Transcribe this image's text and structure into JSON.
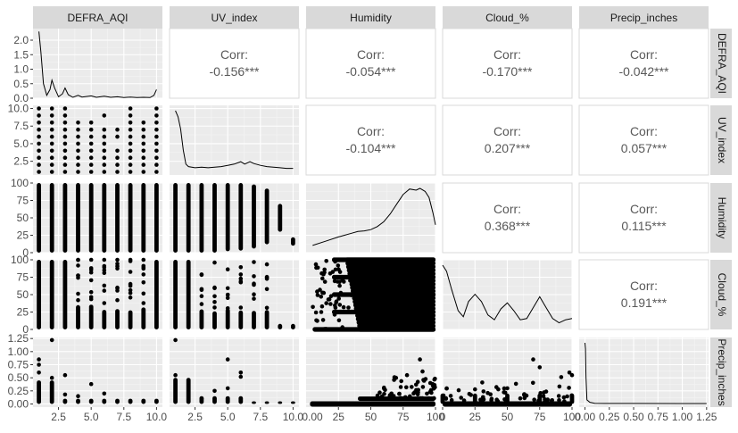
{
  "chart_data": {
    "type": "scatter-matrix",
    "variables": [
      "DEFRA_AQI",
      "UV_index",
      "Humidity",
      "Cloud_%",
      "Precip_inches"
    ],
    "corr_label": "Corr:",
    "correlations": [
      {
        "row": 0,
        "col": 1,
        "value": "-0.156***"
      },
      {
        "row": 0,
        "col": 2,
        "value": "-0.054***"
      },
      {
        "row": 0,
        "col": 3,
        "value": "-0.170***"
      },
      {
        "row": 0,
        "col": 4,
        "value": "-0.042***"
      },
      {
        "row": 1,
        "col": 2,
        "value": "-0.104***"
      },
      {
        "row": 1,
        "col": 3,
        "value": "0.207***"
      },
      {
        "row": 1,
        "col": 4,
        "value": "0.057***"
      },
      {
        "row": 2,
        "col": 3,
        "value": "0.368***"
      },
      {
        "row": 2,
        "col": 4,
        "value": "0.115***"
      },
      {
        "row": 3,
        "col": 4,
        "value": "0.191***"
      }
    ],
    "x_ranges": [
      [
        0.55,
        10.45
      ],
      [
        0.55,
        10.45
      ],
      [
        0,
        100
      ],
      [
        0,
        100
      ],
      [
        -0.06,
        1.27
      ]
    ],
    "x_ticks": [
      [
        2.5,
        5.0,
        7.5,
        10.0
      ],
      [
        2.5,
        5.0,
        7.5,
        10.0
      ],
      [
        25,
        50,
        75,
        100
      ],
      [
        0,
        25,
        50,
        75,
        100
      ],
      [
        0.0,
        0.25,
        0.5,
        0.75,
        1.0,
        1.25
      ]
    ],
    "x_tick_labels": [
      [
        "2.5",
        "5.0",
        "7.5",
        "10.0"
      ],
      [
        "2.5",
        "5.0",
        "7.5",
        "10.0"
      ],
      [
        "25",
        "50",
        "75",
        "100"
      ],
      [
        "0",
        "25",
        "50",
        "75",
        "100"
      ],
      [
        "0.00",
        "0.25",
        "0.50",
        "0.75",
        "1.00",
        "1.25"
      ]
    ],
    "x_label_overlap_between_panels_2_3": "0.00",
    "y_ranges": [
      [
        0,
        2.4
      ],
      [
        0.55,
        10.45
      ],
      [
        0,
        100
      ],
      [
        0,
        100
      ],
      [
        -0.06,
        1.27
      ]
    ],
    "y_ticks": [
      [
        0.0,
        0.5,
        1.0,
        1.5,
        2.0
      ],
      [
        2.5,
        5.0,
        7.5,
        10.0
      ],
      [
        0,
        25,
        50,
        75,
        100
      ],
      [
        0,
        25,
        50,
        75,
        100
      ],
      [
        0.0,
        0.25,
        0.5,
        0.75,
        1.0,
        1.25
      ]
    ],
    "y_tick_labels": [
      [
        "0.0",
        "0.5",
        "1.0",
        "1.5",
        "2.0"
      ],
      [
        "2.5",
        "5.0",
        "7.5",
        "10.0"
      ],
      [
        "0",
        "25",
        "50",
        "75",
        "100"
      ],
      [
        "0",
        "25",
        "50",
        "75",
        "100"
      ],
      [
        "0.00",
        "0.25",
        "0.50",
        "0.75",
        "1.00",
        "1.25"
      ]
    ],
    "density_curves": [
      {
        "var": "DEFRA_AQI",
        "y_scale": "own",
        "points": [
          [
            1.0,
            2.3
          ],
          [
            1.15,
            1.6
          ],
          [
            1.35,
            0.5
          ],
          [
            1.6,
            0.1
          ],
          [
            1.85,
            0.3
          ],
          [
            2.0,
            0.62
          ],
          [
            2.2,
            0.35
          ],
          [
            2.5,
            0.05
          ],
          [
            2.8,
            0.15
          ],
          [
            3.0,
            0.35
          ],
          [
            3.25,
            0.12
          ],
          [
            3.6,
            0.03
          ],
          [
            4.0,
            0.1
          ],
          [
            4.3,
            0.04
          ],
          [
            5.0,
            0.08
          ],
          [
            5.4,
            0.03
          ],
          [
            6.0,
            0.07
          ],
          [
            6.5,
            0.03
          ],
          [
            7.0,
            0.05
          ],
          [
            7.5,
            0.02
          ],
          [
            8.0,
            0.04
          ],
          [
            8.5,
            0.02
          ],
          [
            9.0,
            0.03
          ],
          [
            9.5,
            0.02
          ],
          [
            9.8,
            0.1
          ],
          [
            10.0,
            0.3
          ]
        ]
      },
      {
        "var": "UV_index",
        "points": [
          [
            1.0,
            1.0
          ],
          [
            1.2,
            0.9
          ],
          [
            1.4,
            0.7
          ],
          [
            1.6,
            0.35
          ],
          [
            1.8,
            0.12
          ],
          [
            2.0,
            0.08
          ],
          [
            2.5,
            0.06
          ],
          [
            3.0,
            0.07
          ],
          [
            3.5,
            0.06
          ],
          [
            4.0,
            0.07
          ],
          [
            4.5,
            0.08
          ],
          [
            5.0,
            0.1
          ],
          [
            5.5,
            0.12
          ],
          [
            6.0,
            0.16
          ],
          [
            6.3,
            0.12
          ],
          [
            6.7,
            0.16
          ],
          [
            7.0,
            0.13
          ],
          [
            7.5,
            0.1
          ],
          [
            8.0,
            0.08
          ],
          [
            8.5,
            0.07
          ],
          [
            9.0,
            0.06
          ],
          [
            9.5,
            0.05
          ],
          [
            10.0,
            0.05
          ]
        ]
      },
      {
        "var": "Humidity",
        "points": [
          [
            5,
            0.06
          ],
          [
            15,
            0.13
          ],
          [
            25,
            0.2
          ],
          [
            35,
            0.26
          ],
          [
            40,
            0.29
          ],
          [
            45,
            0.3
          ],
          [
            50,
            0.32
          ],
          [
            55,
            0.37
          ],
          [
            60,
            0.45
          ],
          [
            65,
            0.58
          ],
          [
            70,
            0.74
          ],
          [
            75,
            0.9
          ],
          [
            80,
            0.99
          ],
          [
            85,
            0.97
          ],
          [
            88,
            1.0
          ],
          [
            92,
            0.95
          ],
          [
            95,
            0.85
          ],
          [
            98,
            0.6
          ],
          [
            100,
            0.4
          ]
        ]
      },
      {
        "var": "Cloud_%",
        "points": [
          [
            0,
            1.0
          ],
          [
            3,
            0.9
          ],
          [
            7,
            0.6
          ],
          [
            12,
            0.25
          ],
          [
            16,
            0.15
          ],
          [
            20,
            0.4
          ],
          [
            25,
            0.52
          ],
          [
            30,
            0.4
          ],
          [
            35,
            0.18
          ],
          [
            40,
            0.1
          ],
          [
            45,
            0.28
          ],
          [
            50,
            0.38
          ],
          [
            55,
            0.25
          ],
          [
            60,
            0.1
          ],
          [
            65,
            0.12
          ],
          [
            70,
            0.3
          ],
          [
            75,
            0.48
          ],
          [
            80,
            0.3
          ],
          [
            85,
            0.12
          ],
          [
            90,
            0.05
          ],
          [
            95,
            0.1
          ],
          [
            100,
            0.12
          ]
        ]
      },
      {
        "var": "Precip_inches",
        "points": [
          [
            0.0,
            1.0
          ],
          [
            0.005,
            0.9
          ],
          [
            0.01,
            0.45
          ],
          [
            0.02,
            0.06
          ],
          [
            0.05,
            0.02
          ],
          [
            0.1,
            0.005
          ],
          [
            0.2,
            0.002
          ],
          [
            0.5,
            0.001
          ],
          [
            1.0,
            0.0005
          ],
          [
            1.25,
            0.0005
          ]
        ]
      }
    ]
  }
}
